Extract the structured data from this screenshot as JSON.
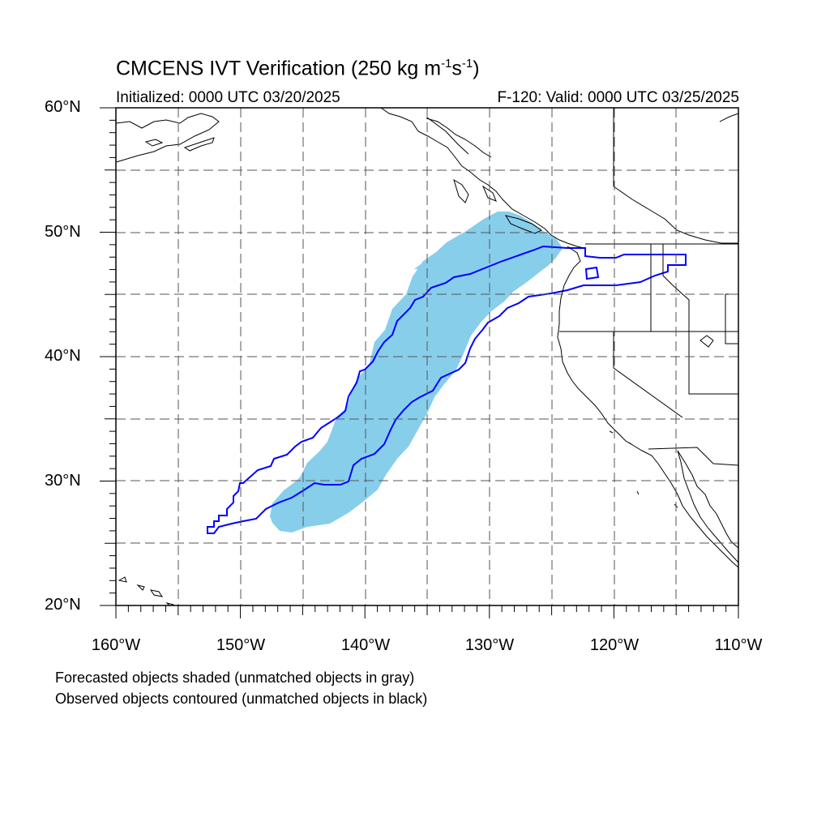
{
  "title": {
    "text": "CMCENS IVT Verification (250 kg m",
    "sup1": "-1",
    "mid": "s",
    "sup2": "-1",
    "end": ")"
  },
  "subtitle_left": "Initialized: 0000 UTC 03/20/2025",
  "subtitle_right": "F-120: Valid: 0000 UTC 03/25/2025",
  "y_ticks": [
    "60°N",
    "50°N",
    "40°N",
    "30°N",
    "20°N"
  ],
  "x_ticks": [
    "160°W",
    "150°W",
    "140°W",
    "130°W",
    "120°W",
    "110°W"
  ],
  "footnotes": [
    "Forecasted objects shaded (unmatched objects in gray)",
    "Observed objects contoured (unmatched objects in black)"
  ],
  "map": {
    "lon_range": [
      -160,
      -110
    ],
    "lat_range": [
      20,
      60
    ],
    "grid_lons": [
      -155,
      -150,
      -145,
      -140,
      -135,
      -130,
      -125,
      -120,
      -115
    ],
    "grid_lats": [
      25,
      30,
      35,
      40,
      45,
      50,
      55
    ],
    "forecast_fill_color": "#87ceeb",
    "observed_contour_color": "#0000ff",
    "coast_color": "#000000"
  }
}
